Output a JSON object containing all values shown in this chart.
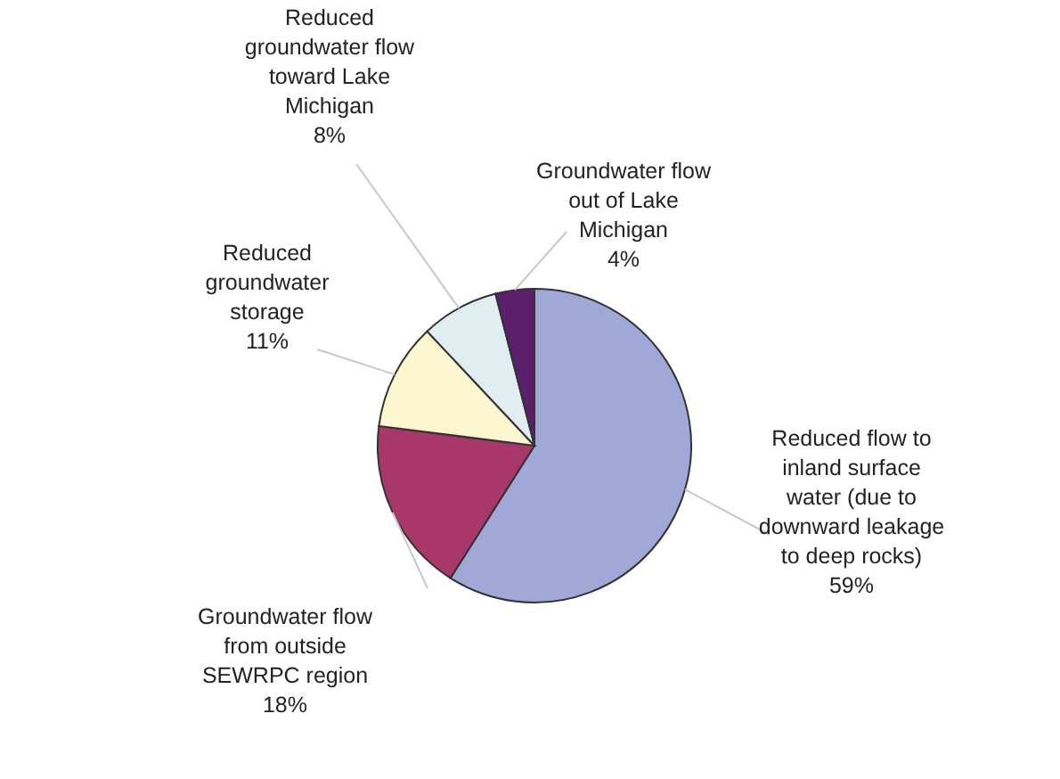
{
  "chart_data": {
    "type": "pie",
    "categories": [
      "Reduced flow to inland surface water (due to downward leakage to deep rocks)",
      "Groundwater flow from outside SEWRPC region",
      "Reduced groundwater storage",
      "Reduced groundwater flow toward Lake Michigan",
      "Groundwater flow out of Lake Michigan"
    ],
    "values": [
      59,
      18,
      11,
      8,
      4
    ],
    "value_labels": [
      "59%",
      "18%",
      "11%",
      "8%",
      "4%"
    ],
    "colors": [
      "#a0a8d8",
      "#a8386a",
      "#fcf7d0",
      "#e0eef2",
      "#5b1f6b"
    ]
  }
}
